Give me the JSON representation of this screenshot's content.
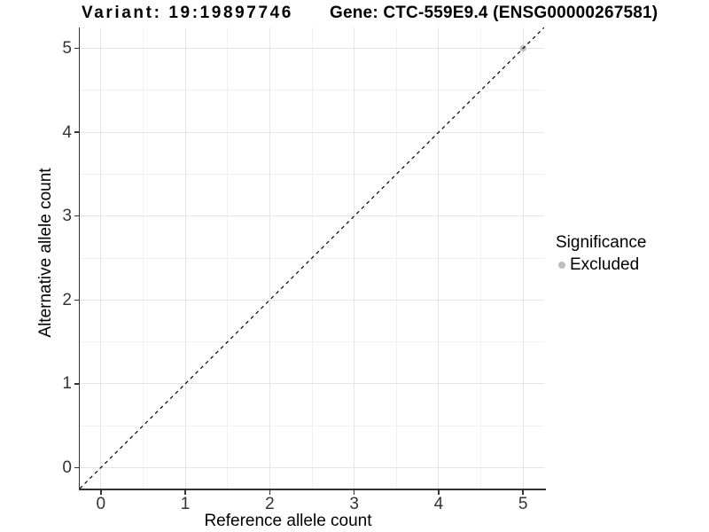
{
  "chart_data": {
    "type": "scatter",
    "title_left": "Variant: 19:19897746",
    "title_right": "Gene: CTC-559E9.4 (ENSG00000267581)",
    "xlabel": "Reference allele count",
    "ylabel": "Alternative allele count",
    "xlim": [
      -0.25,
      5.25
    ],
    "ylim": [
      -0.25,
      5.25
    ],
    "x_ticks": [
      0,
      1,
      2,
      3,
      4,
      5
    ],
    "y_ticks": [
      0,
      1,
      2,
      3,
      4,
      5
    ],
    "x_minor_ticks": [
      0.5,
      1.5,
      2.5,
      3.5,
      4.5
    ],
    "y_minor_ticks": [
      0.5,
      1.5,
      2.5,
      3.5,
      4.5
    ],
    "grid": "major+minor",
    "identity_line": {
      "style": "dashed",
      "color": "#000000",
      "from": [
        -0.25,
        -0.25
      ],
      "to": [
        5.25,
        5.25
      ]
    },
    "series": [
      {
        "name": "Excluded",
        "color": "#bebebe",
        "points": [
          [
            5,
            5
          ]
        ]
      }
    ],
    "legend": {
      "position": "right",
      "title": "Significance",
      "entries": [
        {
          "label": "Excluded",
          "color": "#bebebe"
        }
      ]
    }
  }
}
